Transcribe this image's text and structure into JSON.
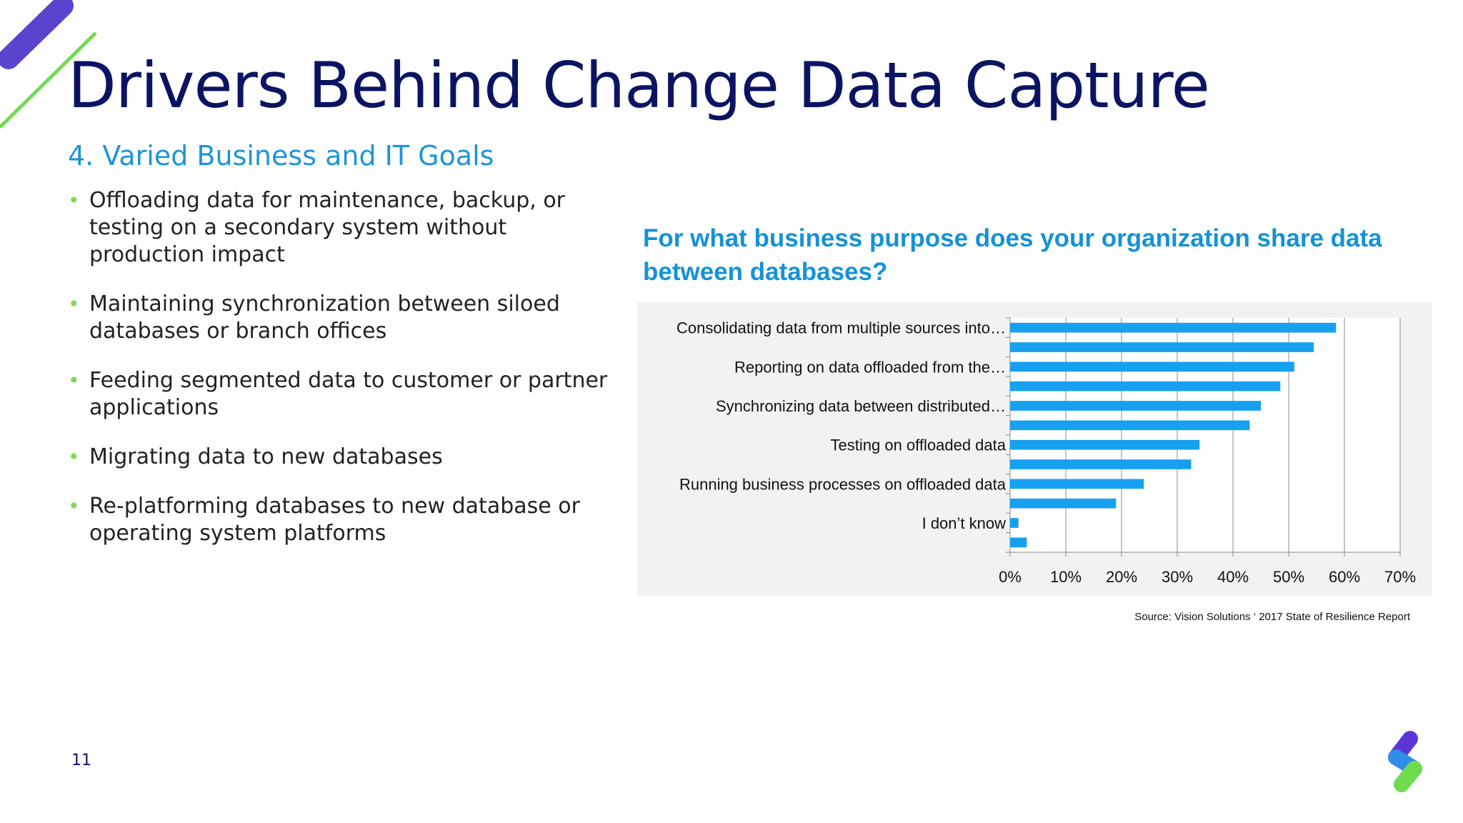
{
  "slide": {
    "title": "Drivers Behind Change Data Capture",
    "subtitle": "4. Varied Business and IT Goals",
    "bullets": [
      "Offloading data for maintenance, backup, or testing on a secondary system without production impact",
      "Maintaining synchronization between siloed databases or branch offices",
      "Feeding segmented data to customer or partner applications",
      "Migrating data to new databases",
      "Re-platforming databases to new database or operating system platforms"
    ],
    "bullet_symbol": "•",
    "page_number": "11",
    "source": "Source: Vision Solutions ‘ 2017 State of Resilience Report",
    "colors": {
      "title": "#0b1463",
      "subtitle": "#1e94d6",
      "bar": "#16a0f0",
      "bullet": "#7ed957"
    },
    "icons": [
      "brand-logo-stripes-icon",
      "brand-logo-s-icon"
    ]
  },
  "chart_data": {
    "type": "bar",
    "orientation": "horizontal",
    "title": "For what business purpose does your organization share data between databases?",
    "category_labels": [
      "Consolidating data from multiple sources into…",
      "Reporting on data offloaded from the…",
      "Synchronizing data between distributed…",
      "Testing on offloaded data",
      "Running business processes on offloaded data",
      "I don’t know"
    ],
    "values": [
      58.5,
      54.5,
      51,
      48.5,
      45,
      43,
      34,
      32.5,
      24,
      19,
      1.5,
      3
    ],
    "xlim": [
      0,
      70
    ],
    "x_ticks": [
      "0%",
      "10%",
      "20%",
      "30%",
      "40%",
      "50%",
      "60%",
      "70%"
    ],
    "grid": "vertical",
    "legend": "none"
  }
}
